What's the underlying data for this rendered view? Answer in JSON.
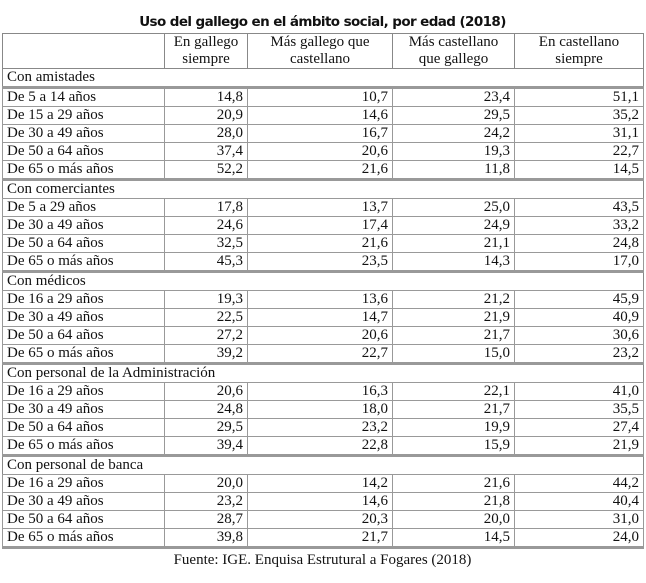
{
  "title": "Uso del gallego en el ámbito social, por edad (2018)",
  "columns": [
    "",
    "En gallego\nsiempre",
    "Más gallego que\ncastellano",
    "Más castellano\nque gallego",
    "En castellano\nsiempre"
  ],
  "groups": [
    {
      "label": "Con amistades",
      "rows": [
        [
          "De 5 a 14 años",
          "14,8",
          "10,7",
          "23,4",
          "51,1"
        ],
        [
          "De 15 a 29 años",
          "20,9",
          "14,6",
          "29,5",
          "35,2"
        ],
        [
          "De 30 a 49 años",
          "28,0",
          "16,7",
          "24,2",
          "31,1"
        ],
        [
          "De 50 a 64 años",
          "37,4",
          "20,6",
          "19,3",
          "22,7"
        ],
        [
          "De 65 o más años",
          "52,2",
          "21,6",
          "11,8",
          "14,5"
        ]
      ]
    },
    {
      "label": "Con comerciantes",
      "rows": [
        [
          "De 5 a 29 años",
          "17,8",
          "13,7",
          "25,0",
          "43,5"
        ],
        [
          "De 30 a 49 años",
          "24,6",
          "17,4",
          "24,9",
          "33,2"
        ],
        [
          "De 50 a 64 años",
          "32,5",
          "21,6",
          "21,1",
          "24,8"
        ],
        [
          "De 65 o más años",
          "45,3",
          "23,5",
          "14,3",
          "17,0"
        ]
      ]
    },
    {
      "label": "Con médicos",
      "rows": [
        [
          "De 16 a 29 años",
          "19,3",
          "13,6",
          "21,2",
          "45,9"
        ],
        [
          "De 30 a 49 años",
          "22,5",
          "14,7",
          "21,9",
          "40,9"
        ],
        [
          "De 50 a 64 años",
          "27,2",
          "20,6",
          "21,7",
          "30,6"
        ],
        [
          "De 65 o más años",
          "39,2",
          "22,7",
          "15,0",
          "23,2"
        ]
      ]
    },
    {
      "label": "Con personal de la Administración",
      "rows": [
        [
          "De 16 a 29 años",
          "20,6",
          "16,3",
          "22,1",
          "41,0"
        ],
        [
          "De 30 a 49 años",
          "24,8",
          "18,0",
          "21,7",
          "35,5"
        ],
        [
          "De 50 a 64 años",
          "29,5",
          "23,2",
          "19,9",
          "27,4"
        ],
        [
          "De 65 o más años",
          "39,4",
          "22,8",
          "15,9",
          "21,9"
        ]
      ]
    },
    {
      "label": "Con personal de banca",
      "rows": [
        [
          "De 16 a 29 años",
          "20,0",
          "14,2",
          "21,6",
          "44,2"
        ],
        [
          "De 30 a 49 años",
          "23,2",
          "14,6",
          "21,8",
          "40,4"
        ],
        [
          "De 50 a 64 años",
          "28,7",
          "20,3",
          "20,0",
          "31,0"
        ],
        [
          "De 65 o más años",
          "39,8",
          "21,7",
          "14,5",
          "24,0"
        ]
      ]
    }
  ],
  "source": "Fuente: IGE. Enquisa Estrutural a Fogares (2018)"
}
